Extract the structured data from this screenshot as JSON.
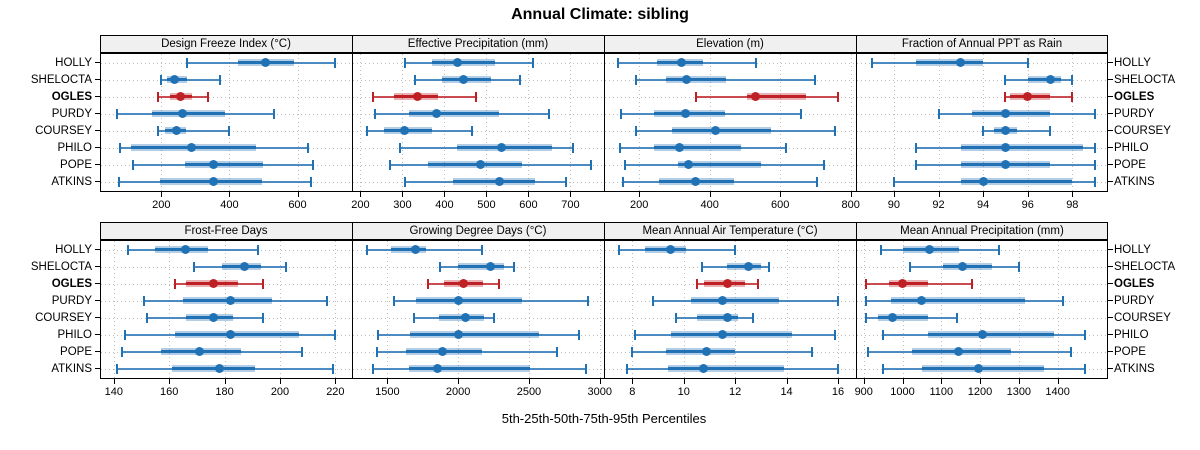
{
  "title": "Annual Climate: sibling",
  "caption": "5th-25th-50th-75th-95th Percentiles",
  "row_labels": [
    "HOLLY",
    "SHELOCTA",
    "OGLES",
    "PURDY",
    "COURSEY",
    "PHILO",
    "POPE",
    "ATKINS"
  ],
  "highlighted_row": "OGLES",
  "colors": {
    "series": "#2171b5",
    "highlight": "#bf2026",
    "grid": "#bcbcbc",
    "strip_bg": "#f0f0f0",
    "border": "#000000"
  },
  "chart_data": {
    "type": "interval-dotplot",
    "layout": "2 rows x 4 columns, grid on, percentile whisker plots",
    "percentile_order": [
      "p5",
      "p25",
      "p50",
      "p75",
      "p95"
    ],
    "series": [
      "HOLLY",
      "SHELOCTA",
      "OGLES",
      "PURDY",
      "COURSEY",
      "PHILO",
      "POPE",
      "ATKINS"
    ],
    "panels": [
      {
        "title": "Design Freeze Index (°C)",
        "xlim": [
          20,
          760
        ],
        "ticks": [
          200,
          400,
          600
        ],
        "values": [
          [
            275,
            425,
            505,
            590,
            710
          ],
          [
            200,
            218,
            240,
            275,
            373
          ],
          [
            190,
            227,
            257,
            290,
            337
          ],
          [
            70,
            172,
            263,
            388,
            530
          ],
          [
            190,
            212,
            246,
            273,
            400
          ],
          [
            80,
            112,
            289,
            479,
            630
          ],
          [
            118,
            270,
            354,
            500,
            645
          ],
          [
            76,
            195,
            352,
            497,
            640
          ]
        ]
      },
      {
        "title": "Effective Precipitation (mm)",
        "xlim": [
          180,
          780
        ],
        "ticks": [
          200,
          300,
          400,
          500,
          600,
          700
        ],
        "values": [
          [
            305,
            370,
            430,
            520,
            610
          ],
          [
            330,
            395,
            445,
            510,
            580
          ],
          [
            230,
            280,
            335,
            385,
            475
          ],
          [
            235,
            315,
            380,
            530,
            650
          ],
          [
            215,
            255,
            305,
            370,
            465
          ],
          [
            295,
            430,
            535,
            655,
            705
          ],
          [
            270,
            360,
            485,
            585,
            750
          ],
          [
            305,
            420,
            530,
            615,
            690
          ]
        ]
      },
      {
        "title": "Elevation (m)",
        "xlim": [
          100,
          815
        ],
        "ticks": [
          200,
          400,
          600,
          800
        ],
        "values": [
          [
            140,
            250,
            320,
            380,
            530
          ],
          [
            190,
            275,
            335,
            445,
            700
          ],
          [
            360,
            505,
            530,
            672,
            765
          ],
          [
            148,
            242,
            330,
            443,
            660
          ],
          [
            192,
            292,
            415,
            575,
            755
          ],
          [
            145,
            242,
            315,
            490,
            615
          ],
          [
            160,
            310,
            340,
            545,
            725
          ],
          [
            155,
            255,
            360,
            470,
            705
          ]
        ]
      },
      {
        "title": "Fraction of Annual PPT as Rain",
        "xlim": [
          88.3,
          99.6
        ],
        "ticks": [
          90,
          92,
          94,
          96,
          98
        ],
        "values": [
          [
            89,
            91,
            93,
            94,
            96
          ],
          [
            95,
            96,
            97,
            97.5,
            98
          ],
          [
            95,
            95.2,
            96,
            97,
            98
          ],
          [
            92,
            93.5,
            95,
            97,
            99
          ],
          [
            94,
            94.5,
            95,
            95.5,
            97
          ],
          [
            91,
            93,
            95,
            98.5,
            99
          ],
          [
            91,
            93,
            95,
            97,
            99
          ],
          [
            90,
            93,
            94,
            98,
            99
          ]
        ]
      },
      {
        "title": "Frost-Free Days",
        "xlim": [
          135,
          226
        ],
        "ticks": [
          140,
          160,
          180,
          200,
          220
        ],
        "values": [
          [
            145,
            155,
            166,
            174,
            192
          ],
          [
            169,
            179,
            187,
            193,
            202
          ],
          [
            162,
            166,
            176,
            185,
            194
          ],
          [
            151,
            165,
            182,
            197,
            217
          ],
          [
            152,
            166,
            176,
            183,
            194
          ],
          [
            144,
            162,
            182,
            207,
            220
          ],
          [
            143,
            157,
            171,
            186,
            208
          ],
          [
            141,
            161,
            178,
            191,
            219
          ]
        ]
      },
      {
        "title": "Growing Degree Days (°C)",
        "xlim": [
          1250,
          3030
        ],
        "ticks": [
          1500,
          2000,
          2500,
          3000
        ],
        "values": [
          [
            1355,
            1525,
            1695,
            1775,
            2170
          ],
          [
            1875,
            2000,
            2225,
            2325,
            2395
          ],
          [
            1785,
            1900,
            2040,
            2175,
            2285
          ],
          [
            1550,
            1700,
            2000,
            2450,
            2915
          ],
          [
            1690,
            1865,
            2055,
            2185,
            2250
          ],
          [
            1435,
            1660,
            2000,
            2570,
            2850
          ],
          [
            1425,
            1630,
            1890,
            2165,
            2695
          ],
          [
            1400,
            1655,
            1855,
            2505,
            2900
          ]
        ]
      },
      {
        "title": "Mean Annual Air Temperature (°C)",
        "xlim": [
          6.9,
          16.7
        ],
        "ticks": [
          8,
          10,
          12,
          14,
          16
        ],
        "values": [
          [
            7.5,
            8.5,
            9.5,
            10.1,
            12
          ],
          [
            10.7,
            11.7,
            12.5,
            13,
            13.3
          ],
          [
            10.5,
            10.8,
            11.7,
            12.4,
            12.9
          ],
          [
            8.8,
            10.3,
            11.5,
            13.7,
            16
          ],
          [
            9.7,
            10.5,
            11.7,
            12.1,
            12.7
          ],
          [
            8.1,
            9.5,
            11.5,
            14.2,
            15.9
          ],
          [
            8,
            9.3,
            10.9,
            12,
            15
          ],
          [
            7.8,
            9.4,
            10.75,
            13.9,
            16
          ]
        ]
      },
      {
        "title": "Mean Annual Precipitation (mm)",
        "xlim": [
          880,
          1530
        ],
        "ticks": [
          900,
          1000,
          1100,
          1200,
          1300,
          1400
        ],
        "values": [
          [
            945,
            1000,
            1070,
            1145,
            1250
          ],
          [
            1020,
            1105,
            1155,
            1230,
            1300
          ],
          [
            905,
            965,
            1000,
            1065,
            1180
          ],
          [
            905,
            970,
            1050,
            1315,
            1415
          ],
          [
            905,
            938,
            975,
            1065,
            1140
          ],
          [
            950,
            1065,
            1205,
            1390,
            1470
          ],
          [
            910,
            1025,
            1145,
            1280,
            1435
          ],
          [
            950,
            1050,
            1195,
            1365,
            1470
          ]
        ]
      }
    ]
  }
}
